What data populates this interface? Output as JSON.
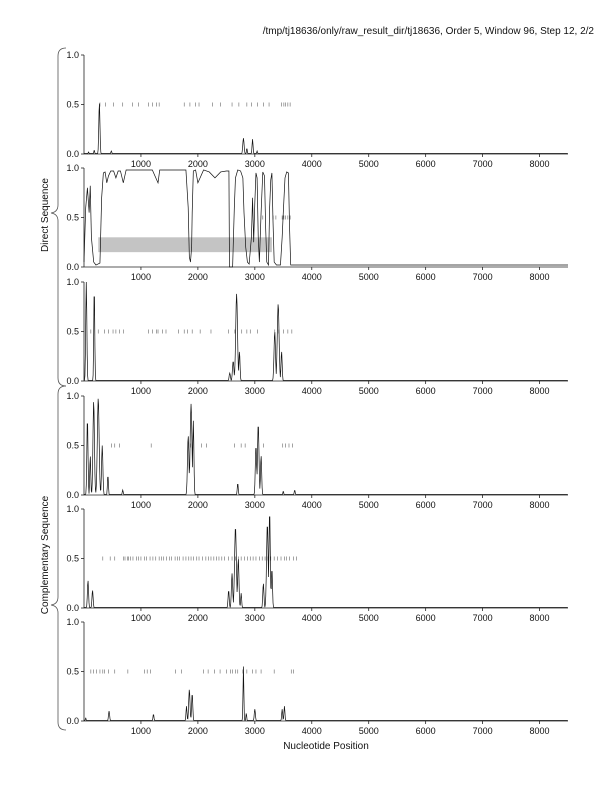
{
  "header": {
    "title": "/tmp/tj18636/only/raw_result_dir/tj18636, Order 5, Window 96, Step 12, 2/2"
  },
  "group_labels": {
    "direct": "Direct Sequence",
    "complementary": "Complementary Sequence"
  },
  "xlabel": "Nucleotide Position",
  "chart_data": {
    "type": "line",
    "title": "/tmp/tj18636/only/raw_result_dir/tj18636, Order 5, Window 96, Step 12, 2/2",
    "xlabel": "Nucleotide Position",
    "xlim": [
      0,
      8500
    ],
    "ylim": [
      0,
      1
    ],
    "xticks": [
      1000,
      2000,
      3000,
      4000,
      5000,
      6000,
      7000,
      8000
    ],
    "yticks": [
      0.0,
      0.5,
      1.0
    ],
    "ytick_labels": [
      "0.0",
      "0.5",
      "1.0"
    ],
    "grid": false,
    "panels": [
      {
        "group": "Direct Sequence",
        "series": [
          {
            "peaks": [
              [
                80,
                0.02,
                10
              ],
              [
                180,
                0.04,
                10
              ],
              [
                270,
                0.52,
                14
              ],
              [
                480,
                0.03,
                12
              ],
              [
                2800,
                0.16,
                16
              ],
              [
                2860,
                0.06,
                10
              ],
              [
                2960,
                0.15,
                12
              ],
              [
                3040,
                0.03,
                10
              ]
            ]
          }
        ],
        "markers": [
          280,
          380,
          520,
          680,
          850,
          960,
          1130,
          1200,
          1270,
          1320,
          1760,
          1860,
          1960,
          2020,
          2260,
          2400,
          2600,
          2720,
          2860,
          2940,
          3050,
          3150,
          3250,
          3470,
          3510,
          3540,
          3580,
          3620
        ]
      },
      {
        "group": "Direct Sequence",
        "series": [
          {
            "segments": [
              [
                0,
                0.05
              ],
              [
                30,
                0.6
              ],
              [
                60,
                0.8
              ],
              [
                90,
                0.55
              ],
              [
                110,
                0.82
              ],
              [
                130,
                0.3
              ],
              [
                170,
                0.05
              ],
              [
                210,
                0.02
              ],
              [
                280,
                0.04
              ],
              [
                310,
                0.7
              ],
              [
                340,
                0.95
              ],
              [
                370,
                0.96
              ],
              [
                400,
                0.85
              ],
              [
                430,
                0.92
              ],
              [
                470,
                0.97
              ],
              [
                520,
                0.97
              ],
              [
                560,
                0.9
              ],
              [
                600,
                0.97
              ],
              [
                640,
                0.97
              ],
              [
                690,
                0.85
              ],
              [
                740,
                0.98
              ],
              [
                1000,
                0.98
              ],
              [
                1200,
                0.98
              ],
              [
                1300,
                0.85
              ],
              [
                1330,
                0.98
              ],
              [
                1500,
                0.98
              ],
              [
                1790,
                0.98
              ],
              [
                1830,
                0.6
              ],
              [
                1850,
                0.1
              ],
              [
                1870,
                0.05
              ],
              [
                1890,
                0.2
              ],
              [
                1900,
                0.55
              ],
              [
                1920,
                0.97
              ],
              [
                1960,
                0.98
              ],
              [
                2000,
                0.85
              ],
              [
                2100,
                0.98
              ],
              [
                2200,
                0.96
              ],
              [
                2300,
                0.9
              ],
              [
                2400,
                0.96
              ],
              [
                2500,
                0.97
              ],
              [
                2545,
                0.97
              ],
              [
                2555,
                0.0
              ],
              [
                2610,
                0.0
              ],
              [
                2640,
                0.6
              ],
              [
                2660,
                0.9
              ],
              [
                2700,
                0.98
              ],
              [
                2750,
                0.97
              ],
              [
                2790,
                0.9
              ],
              [
                2810,
                0.55
              ],
              [
                2840,
                0.2
              ],
              [
                2870,
                0.05
              ],
              [
                2900,
                0.03
              ],
              [
                2940,
                0.3
              ],
              [
                2960,
                0.7
              ],
              [
                2980,
                0.25
              ],
              [
                3000,
                0.65
              ],
              [
                3020,
                0.95
              ],
              [
                3040,
                0.9
              ],
              [
                3060,
                0.3
              ],
              [
                3080,
                0.05
              ],
              [
                3110,
                0.55
              ],
              [
                3140,
                0.96
              ],
              [
                3170,
                0.92
              ],
              [
                3190,
                0.4
              ],
              [
                3210,
                0.05
              ],
              [
                3240,
                0.02
              ],
              [
                3260,
                0.6
              ],
              [
                3280,
                0.88
              ],
              [
                3300,
                0.95
              ],
              [
                3320,
                0.45
              ],
              [
                3340,
                0.05
              ],
              [
                3380,
                0.02
              ],
              [
                3450,
                0.02
              ],
              [
                3480,
                0.3
              ],
              [
                3500,
                0.55
              ],
              [
                3530,
                0.9
              ],
              [
                3560,
                0.96
              ],
              [
                3590,
                0.95
              ],
              [
                3610,
                0.4
              ],
              [
                3630,
                0.02
              ],
              [
                8500,
                0.02
              ]
            ]
          }
        ],
        "band": {
          "x": [
            250,
            3300
          ],
          "y": [
            0.15,
            0.3
          ]
        },
        "markers": [
          3140,
          3320,
          3370,
          3480,
          3510,
          3540,
          3580,
          3620
        ]
      },
      {
        "group": "Direct Sequence",
        "series": [
          {
            "peaks": [
              [
                40,
                1.0,
                14
              ],
              [
                180,
                0.95,
                12
              ],
              [
                2560,
                0.08,
                16
              ],
              [
                2620,
                0.2,
                18
              ],
              [
                2680,
                0.88,
                22
              ],
              [
                2730,
                0.3,
                14
              ],
              [
                3350,
                0.5,
                18
              ],
              [
                3410,
                0.78,
                22
              ],
              [
                3470,
                0.3,
                14
              ]
            ]
          }
        ],
        "markers": [
          120,
          250,
          360,
          430,
          510,
          560,
          620,
          690,
          1130,
          1200,
          1270,
          1300,
          1380,
          1440,
          1660,
          1760,
          1820,
          1900,
          2040,
          2230,
          2540,
          2650,
          2770,
          2860,
          2920,
          3050,
          3350,
          3420,
          3500,
          3580,
          3650
        ]
      },
      {
        "group": "Complementary Sequence",
        "series": [
          {
            "peaks": [
              [
                60,
                0.78,
                14
              ],
              [
                110,
                0.4,
                12
              ],
              [
                170,
                0.95,
                18
              ],
              [
                250,
                0.98,
                22
              ],
              [
                320,
                0.5,
                16
              ],
              [
                420,
                0.2,
                12
              ],
              [
                680,
                0.05,
                12
              ],
              [
                1830,
                0.6,
                18
              ],
              [
                1880,
                0.92,
                22
              ],
              [
                1920,
                0.75,
                14
              ],
              [
                2700,
                0.12,
                12
              ],
              [
                3020,
                0.5,
                16
              ],
              [
                3060,
                0.72,
                18
              ],
              [
                3110,
                0.4,
                14
              ],
              [
                3500,
                0.04,
                10
              ],
              [
                3700,
                0.05,
                12
              ]
            ]
          }
        ],
        "markers": [
          480,
          540,
          620,
          1180,
          1870,
          2060,
          2150,
          2640,
          2760,
          2830,
          3150,
          3490,
          3540,
          3600,
          3660
        ]
      },
      {
        "group": "Complementary Sequence",
        "series": [
          {
            "peaks": [
              [
                70,
                0.28,
                14
              ],
              [
                150,
                0.18,
                14
              ],
              [
                2540,
                0.18,
                14
              ],
              [
                2600,
                0.35,
                16
              ],
              [
                2660,
                0.82,
                22
              ],
              [
                2710,
                0.5,
                16
              ],
              [
                2760,
                0.15,
                12
              ],
              [
                3150,
                0.25,
                14
              ],
              [
                3220,
                0.85,
                20
              ],
              [
                3260,
                0.98,
                16
              ],
              [
                3300,
                0.4,
                14
              ]
            ]
          }
        ],
        "markers": [
          330,
          460,
          540,
          690,
          720,
          760,
          780,
          820,
          860,
          920,
          960,
          1000,
          1060,
          1100,
          1160,
          1210,
          1260,
          1320,
          1360,
          1400,
          1450,
          1500,
          1540,
          1600,
          1640,
          1680,
          1740,
          1790,
          1840,
          1880,
          1920,
          1980,
          2020,
          2080,
          2140,
          2190,
          2230,
          2280,
          2330,
          2370,
          2420,
          2470,
          2540,
          2600,
          2660,
          2710,
          2760,
          2820,
          2870,
          2920,
          2970,
          3020,
          3080,
          3130,
          3180,
          3230,
          3280,
          3340,
          3400,
          3460,
          3520,
          3560,
          3610,
          3680,
          3730
        ]
      },
      {
        "group": "Complementary Sequence",
        "series": [
          {
            "peaks": [
              [
                30,
                0.03,
                10
              ],
              [
                440,
                0.1,
                14
              ],
              [
                1220,
                0.07,
                12
              ],
              [
                1800,
                0.15,
                12
              ],
              [
                1850,
                0.32,
                16
              ],
              [
                1900,
                0.28,
                14
              ],
              [
                2800,
                0.55,
                10
              ],
              [
                2850,
                0.08,
                10
              ],
              [
                3000,
                0.12,
                14
              ],
              [
                3480,
                0.12,
                12
              ],
              [
                3520,
                0.15,
                12
              ]
            ]
          }
        ],
        "markers": [
          120,
          170,
          220,
          280,
          330,
          360,
          430,
          540,
          770,
          1060,
          1110,
          1170,
          1610,
          1710,
          2100,
          2180,
          2290,
          2390,
          2500,
          2570,
          2610,
          2660,
          2700,
          2790,
          2860,
          2960,
          3020,
          3110,
          3340,
          3640,
          3680
        ]
      }
    ]
  }
}
